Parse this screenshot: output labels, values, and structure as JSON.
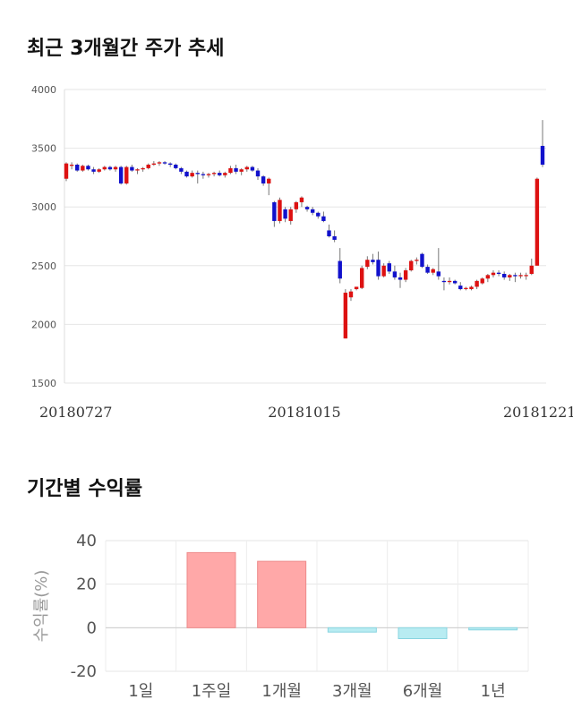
{
  "chart_data": [
    {
      "type": "candlestick",
      "title": "최근 3개월간 주가 추세",
      "ylim": [
        1500,
        4000
      ],
      "yticks": [
        1500,
        2000,
        2500,
        3000,
        3500,
        4000
      ],
      "xtick_labels": [
        "20180727",
        "20181015",
        "20181221"
      ],
      "grid": true,
      "colors": {
        "up": "#dd1111",
        "down": "#1111cc",
        "wick": "#777777"
      },
      "candles": [
        {
          "o": 3240,
          "h": 3380,
          "l": 3220,
          "c": 3370
        },
        {
          "o": 3350,
          "h": 3380,
          "l": 3320,
          "c": 3360
        },
        {
          "o": 3360,
          "h": 3370,
          "l": 3300,
          "c": 3310
        },
        {
          "o": 3310,
          "h": 3360,
          "l": 3300,
          "c": 3350
        },
        {
          "o": 3350,
          "h": 3360,
          "l": 3310,
          "c": 3320
        },
        {
          "o": 3320,
          "h": 3340,
          "l": 3280,
          "c": 3300
        },
        {
          "o": 3300,
          "h": 3330,
          "l": 3290,
          "c": 3320
        },
        {
          "o": 3320,
          "h": 3350,
          "l": 3310,
          "c": 3340
        },
        {
          "o": 3340,
          "h": 3350,
          "l": 3310,
          "c": 3320
        },
        {
          "o": 3320,
          "h": 3350,
          "l": 3300,
          "c": 3340
        },
        {
          "o": 3340,
          "h": 3350,
          "l": 3190,
          "c": 3200
        },
        {
          "o": 3200,
          "h": 3350,
          "l": 3190,
          "c": 3340
        },
        {
          "o": 3340,
          "h": 3360,
          "l": 3300,
          "c": 3310
        },
        {
          "o": 3310,
          "h": 3330,
          "l": 3280,
          "c": 3320
        },
        {
          "o": 3320,
          "h": 3340,
          "l": 3300,
          "c": 3330
        },
        {
          "o": 3330,
          "h": 3370,
          "l": 3320,
          "c": 3360
        },
        {
          "o": 3360,
          "h": 3390,
          "l": 3350,
          "c": 3370
        },
        {
          "o": 3370,
          "h": 3390,
          "l": 3350,
          "c": 3380
        },
        {
          "o": 3380,
          "h": 3390,
          "l": 3360,
          "c": 3370
        },
        {
          "o": 3370,
          "h": 3380,
          "l": 3340,
          "c": 3360
        },
        {
          "o": 3360,
          "h": 3370,
          "l": 3320,
          "c": 3330
        },
        {
          "o": 3330,
          "h": 3340,
          "l": 3280,
          "c": 3300
        },
        {
          "o": 3300,
          "h": 3310,
          "l": 3250,
          "c": 3260
        },
        {
          "o": 3260,
          "h": 3310,
          "l": 3250,
          "c": 3290
        },
        {
          "o": 3290,
          "h": 3310,
          "l": 3200,
          "c": 3280
        },
        {
          "o": 3280,
          "h": 3300,
          "l": 3240,
          "c": 3270
        },
        {
          "o": 3270,
          "h": 3290,
          "l": 3250,
          "c": 3280
        },
        {
          "o": 3280,
          "h": 3300,
          "l": 3260,
          "c": 3290
        },
        {
          "o": 3290,
          "h": 3310,
          "l": 3260,
          "c": 3270
        },
        {
          "o": 3270,
          "h": 3300,
          "l": 3250,
          "c": 3290
        },
        {
          "o": 3290,
          "h": 3350,
          "l": 3280,
          "c": 3330
        },
        {
          "o": 3330,
          "h": 3360,
          "l": 3280,
          "c": 3300
        },
        {
          "o": 3300,
          "h": 3330,
          "l": 3270,
          "c": 3320
        },
        {
          "o": 3320,
          "h": 3350,
          "l": 3300,
          "c": 3340
        },
        {
          "o": 3340,
          "h": 3350,
          "l": 3300,
          "c": 3310
        },
        {
          "o": 3310,
          "h": 3330,
          "l": 3230,
          "c": 3260
        },
        {
          "o": 3260,
          "h": 3270,
          "l": 3180,
          "c": 3200
        },
        {
          "o": 3200,
          "h": 3250,
          "l": 3100,
          "c": 3240
        },
        {
          "o": 3040,
          "h": 3050,
          "l": 2830,
          "c": 2880
        },
        {
          "o": 2880,
          "h": 3080,
          "l": 2860,
          "c": 3060
        },
        {
          "o": 2980,
          "h": 3000,
          "l": 2870,
          "c": 2900
        },
        {
          "o": 2880,
          "h": 3000,
          "l": 2850,
          "c": 2980
        },
        {
          "o": 2980,
          "h": 3050,
          "l": 2950,
          "c": 3040
        },
        {
          "o": 3040,
          "h": 3090,
          "l": 3000,
          "c": 3080
        },
        {
          "o": 3000,
          "h": 3010,
          "l": 2960,
          "c": 2980
        },
        {
          "o": 2980,
          "h": 3000,
          "l": 2930,
          "c": 2950
        },
        {
          "o": 2950,
          "h": 2960,
          "l": 2900,
          "c": 2920
        },
        {
          "o": 2920,
          "h": 2960,
          "l": 2870,
          "c": 2880
        },
        {
          "o": 2800,
          "h": 2850,
          "l": 2740,
          "c": 2750
        },
        {
          "o": 2750,
          "h": 2800,
          "l": 2700,
          "c": 2720
        },
        {
          "o": 2540,
          "h": 2650,
          "l": 2350,
          "c": 2390
        },
        {
          "o": 1880,
          "h": 2300,
          "l": 1880,
          "c": 2270
        },
        {
          "o": 2230,
          "h": 2300,
          "l": 2200,
          "c": 2280
        },
        {
          "o": 2300,
          "h": 2320,
          "l": 2290,
          "c": 2320
        },
        {
          "o": 2310,
          "h": 2500,
          "l": 2300,
          "c": 2480
        },
        {
          "o": 2490,
          "h": 2580,
          "l": 2470,
          "c": 2550
        },
        {
          "o": 2550,
          "h": 2600,
          "l": 2510,
          "c": 2530
        },
        {
          "o": 2550,
          "h": 2620,
          "l": 2380,
          "c": 2410
        },
        {
          "o": 2410,
          "h": 2520,
          "l": 2400,
          "c": 2500
        },
        {
          "o": 2520,
          "h": 2540,
          "l": 2430,
          "c": 2450
        },
        {
          "o": 2450,
          "h": 2500,
          "l": 2380,
          "c": 2400
        },
        {
          "o": 2400,
          "h": 2440,
          "l": 2310,
          "c": 2380
        },
        {
          "o": 2380,
          "h": 2480,
          "l": 2360,
          "c": 2460
        },
        {
          "o": 2460,
          "h": 2550,
          "l": 2450,
          "c": 2540
        },
        {
          "o": 2540,
          "h": 2570,
          "l": 2510,
          "c": 2550
        },
        {
          "o": 2600,
          "h": 2610,
          "l": 2480,
          "c": 2490
        },
        {
          "o": 2490,
          "h": 2510,
          "l": 2430,
          "c": 2440
        },
        {
          "o": 2440,
          "h": 2480,
          "l": 2420,
          "c": 2470
        },
        {
          "o": 2450,
          "h": 2650,
          "l": 2380,
          "c": 2410
        },
        {
          "o": 2370,
          "h": 2400,
          "l": 2290,
          "c": 2360
        },
        {
          "o": 2360,
          "h": 2400,
          "l": 2340,
          "c": 2370
        },
        {
          "o": 2370,
          "h": 2380,
          "l": 2340,
          "c": 2350
        },
        {
          "o": 2330,
          "h": 2360,
          "l": 2290,
          "c": 2300
        },
        {
          "o": 2300,
          "h": 2320,
          "l": 2290,
          "c": 2310
        },
        {
          "o": 2300,
          "h": 2330,
          "l": 2290,
          "c": 2320
        },
        {
          "o": 2320,
          "h": 2380,
          "l": 2300,
          "c": 2370
        },
        {
          "o": 2350,
          "h": 2400,
          "l": 2340,
          "c": 2390
        },
        {
          "o": 2390,
          "h": 2430,
          "l": 2360,
          "c": 2420
        },
        {
          "o": 2420,
          "h": 2460,
          "l": 2400,
          "c": 2440
        },
        {
          "o": 2440,
          "h": 2460,
          "l": 2410,
          "c": 2430
        },
        {
          "o": 2430,
          "h": 2450,
          "l": 2380,
          "c": 2400
        },
        {
          "o": 2400,
          "h": 2430,
          "l": 2370,
          "c": 2420
        },
        {
          "o": 2420,
          "h": 2440,
          "l": 2360,
          "c": 2410
        },
        {
          "o": 2410,
          "h": 2440,
          "l": 2390,
          "c": 2420
        },
        {
          "o": 2420,
          "h": 2440,
          "l": 2380,
          "c": 2420
        },
        {
          "o": 2430,
          "h": 2560,
          "l": 2420,
          "c": 2500
        },
        {
          "o": 2500,
          "h": 3250,
          "l": 2500,
          "c": 3240
        },
        {
          "o": 3520,
          "h": 3740,
          "l": 3340,
          "c": 3360
        }
      ]
    },
    {
      "type": "bar",
      "title": "기간별 수익률",
      "ylabel": "수익률(%)",
      "ylim": [
        -20,
        40
      ],
      "yticks": [
        -20,
        0,
        20,
        40
      ],
      "categories": [
        "1일",
        "1주일",
        "1개월",
        "3개월",
        "6개월",
        "1년"
      ],
      "values": [
        0,
        34.5,
        30.5,
        -2,
        -5,
        -1
      ],
      "colors": {
        "positive": "#ffa8a8",
        "positive_edge": "#ee8a8a",
        "negative": "#b8ecf2",
        "negative_edge": "#88d4e0"
      },
      "grid": true
    }
  ]
}
